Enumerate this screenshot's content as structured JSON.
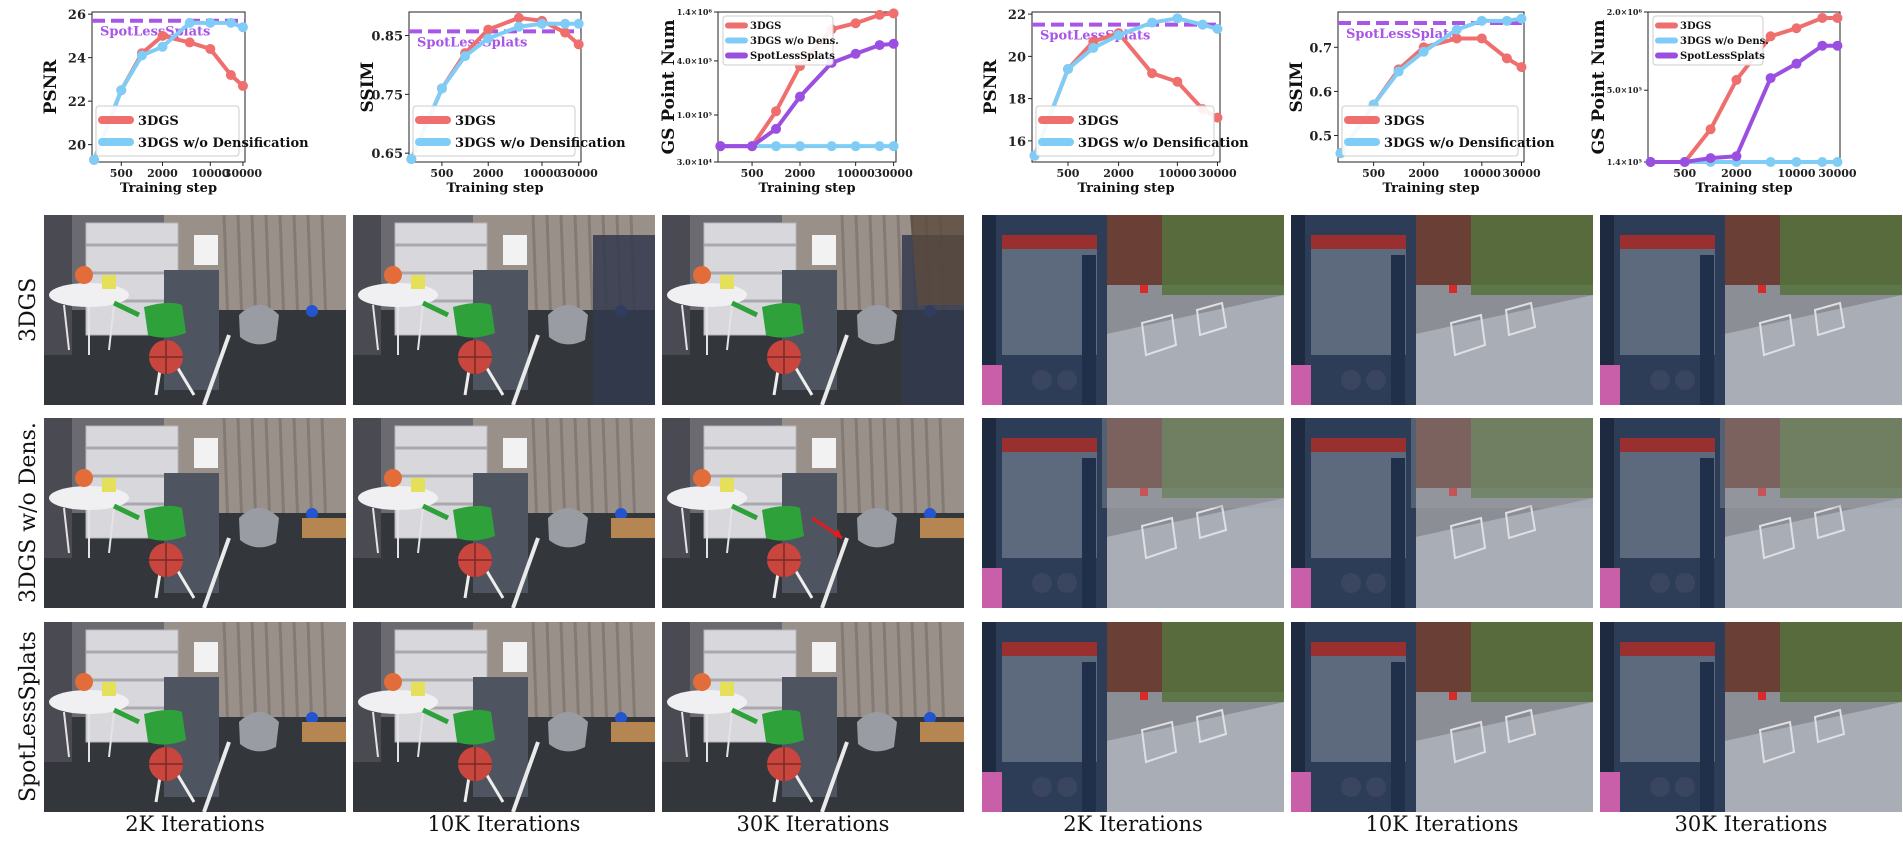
{
  "colors": {
    "3dgs": "#ef6f6f",
    "nodens": "#7fcdf6",
    "spotless": "#9b4fe0",
    "ref_line": "#a855e8"
  },
  "row_labels": [
    "3DGS",
    "3DGS  w/o Dens.",
    "SpotLessSplats"
  ],
  "col_labels": [
    "2K Iterations",
    "10K Iterations",
    "30K Iterations",
    "2K Iterations",
    "10K Iterations",
    "30K Iterations"
  ],
  "chart_data": [
    {
      "type": "line",
      "ylabel": "PSNR",
      "xlabel": "Training step",
      "x": [
        200,
        500,
        1000,
        2000,
        5000,
        10000,
        20000,
        30000
      ],
      "x_ticks": [
        "500",
        "2000",
        "10000",
        "30000"
      ],
      "x_tick_values": [
        500,
        2000,
        10000,
        30000
      ],
      "xscale": "log",
      "ylim": [
        19.2,
        26.1
      ],
      "y_ticks": [
        "20",
        "22",
        "24",
        "26"
      ],
      "y_tick_values": [
        20,
        22,
        24,
        26
      ],
      "reference": {
        "label": "SpotLessSplats",
        "value": 25.7
      },
      "series": [
        {
          "name": "3DGS",
          "key": "3dgs",
          "values": [
            19.3,
            22.5,
            24.2,
            25.0,
            24.7,
            24.4,
            23.2,
            22.7
          ]
        },
        {
          "name": "3DGS w/o Densification",
          "key": "nodens",
          "values": [
            19.3,
            22.5,
            24.1,
            24.5,
            25.6,
            25.6,
            25.6,
            25.4
          ]
        }
      ],
      "legend": "bottom-right"
    },
    {
      "type": "line",
      "ylabel": "SSIM",
      "xlabel": "Training step",
      "x": [
        200,
        500,
        1000,
        2000,
        5000,
        10000,
        20000,
        30000
      ],
      "x_ticks": [
        "500",
        "2000",
        "10000",
        "30000"
      ],
      "x_tick_values": [
        500,
        2000,
        10000,
        30000
      ],
      "xscale": "log",
      "ylim": [
        0.635,
        0.89
      ],
      "y_ticks": [
        "0.65",
        "0.75",
        "0.85"
      ],
      "y_tick_values": [
        0.65,
        0.75,
        0.85
      ],
      "reference": {
        "label": "SpotLessSplats",
        "value": 0.857
      },
      "series": [
        {
          "name": "3DGS",
          "key": "3dgs",
          "values": [
            0.64,
            0.76,
            0.82,
            0.86,
            0.88,
            0.875,
            0.855,
            0.835
          ]
        },
        {
          "name": "3DGS w/o Densification",
          "key": "nodens",
          "values": [
            0.64,
            0.76,
            0.815,
            0.845,
            0.865,
            0.87,
            0.87,
            0.87
          ]
        }
      ],
      "legend": "bottom-right"
    },
    {
      "type": "line",
      "ylabel": "GS Point Num",
      "xlabel": "Training step",
      "x": [
        200,
        500,
        1000,
        2000,
        5000,
        10000,
        20000,
        30000
      ],
      "x_ticks": [
        "500",
        "2000",
        "10000",
        "30000"
      ],
      "x_tick_values": [
        500,
        2000,
        10000,
        30000
      ],
      "xscale": "log",
      "yscale": "log",
      "ylim": [
        30000,
        1400000
      ],
      "y_ticks": [
        "3.0×10⁴",
        "1.0×10⁵",
        "4.0×10⁵",
        "1.4×10⁶"
      ],
      "y_tick_values": [
        30000,
        100000,
        400000,
        1400000
      ],
      "series": [
        {
          "name": "3DGS",
          "key": "3dgs",
          "values": [
            45000,
            45000,
            110000,
            350000,
            900000,
            1050000,
            1300000,
            1350000
          ]
        },
        {
          "name": "3DGS w/o Dens.",
          "key": "nodens",
          "values": [
            45000,
            45000,
            45000,
            45000,
            45000,
            45000,
            45000,
            45000
          ]
        },
        {
          "name": "SpotLessSplats",
          "key": "spotless",
          "values": [
            45000,
            45000,
            70000,
            160000,
            380000,
            480000,
            600000,
            620000
          ]
        }
      ],
      "legend": "top-left"
    },
    {
      "type": "line",
      "ylabel": "PSNR",
      "xlabel": "Training step",
      "x": [
        200,
        500,
        1000,
        2000,
        5000,
        10000,
        20000,
        30000
      ],
      "x_ticks": [
        "500",
        "2000",
        "10000",
        "30000"
      ],
      "x_tick_values": [
        500,
        2000,
        10000,
        30000
      ],
      "xscale": "log",
      "ylim": [
        15.0,
        22.1
      ],
      "y_ticks": [
        "16",
        "18",
        "20",
        "22"
      ],
      "y_tick_values": [
        16,
        18,
        20,
        22
      ],
      "reference": {
        "label": "SpotLessSplats",
        "value": 21.5
      },
      "series": [
        {
          "name": "3DGS",
          "key": "3dgs",
          "values": [
            15.3,
            19.4,
            20.7,
            21.1,
            19.2,
            18.8,
            17.5,
            17.1
          ]
        },
        {
          "name": "3DGS w/o Densification",
          "key": "nodens",
          "values": [
            15.3,
            19.4,
            20.4,
            21.0,
            21.6,
            21.8,
            21.5,
            21.3
          ]
        }
      ],
      "legend": "bottom-right"
    },
    {
      "type": "line",
      "ylabel": "SSIM",
      "xlabel": "Training step",
      "x": [
        200,
        500,
        1000,
        2000,
        5000,
        10000,
        20000,
        30000
      ],
      "x_ticks": [
        "500",
        "2000",
        "10000",
        "30000"
      ],
      "x_tick_values": [
        500,
        2000,
        10000,
        30000
      ],
      "xscale": "log",
      "ylim": [
        0.44,
        0.78
      ],
      "y_ticks": [
        "0.5",
        "0.6",
        "0.7"
      ],
      "y_tick_values": [
        0.5,
        0.6,
        0.7
      ],
      "reference": {
        "label": "SpotLessSplats",
        "value": 0.755
      },
      "series": [
        {
          "name": "3DGS",
          "key": "3dgs",
          "values": [
            0.46,
            0.57,
            0.65,
            0.7,
            0.72,
            0.72,
            0.675,
            0.655
          ]
        },
        {
          "name": "3DGS w/o Densification",
          "key": "nodens",
          "values": [
            0.46,
            0.57,
            0.645,
            0.69,
            0.74,
            0.76,
            0.76,
            0.765
          ]
        }
      ],
      "legend": "bottom-right"
    },
    {
      "type": "line",
      "ylabel": "GS Point Num",
      "xlabel": "Training step",
      "x": [
        200,
        500,
        1000,
        2000,
        5000,
        10000,
        20000,
        30000
      ],
      "x_ticks": [
        "500",
        "2000",
        "10000",
        "30000"
      ],
      "x_tick_values": [
        500,
        2000,
        10000,
        30000
      ],
      "xscale": "log",
      "yscale": "log",
      "ylim": [
        140000,
        2000000
      ],
      "y_ticks": [
        "1.4×10⁵",
        "5.0×10⁵",
        "2.0×10⁶"
      ],
      "y_tick_values": [
        140000,
        500000,
        2000000
      ],
      "series": [
        {
          "name": "3DGS",
          "key": "3dgs",
          "values": [
            140000,
            140000,
            250000,
            600000,
            1300000,
            1500000,
            1800000,
            1800000
          ]
        },
        {
          "name": "3DGS w/o Dens.",
          "key": "nodens",
          "values": [
            140000,
            140000,
            140000,
            140000,
            140000,
            140000,
            140000,
            140000
          ]
        },
        {
          "name": "SpotLessSplats",
          "key": "spotless",
          "values": [
            140000,
            140000,
            150000,
            155000,
            620000,
            800000,
            1100000,
            1100000
          ]
        }
      ],
      "legend": "top-left"
    }
  ]
}
